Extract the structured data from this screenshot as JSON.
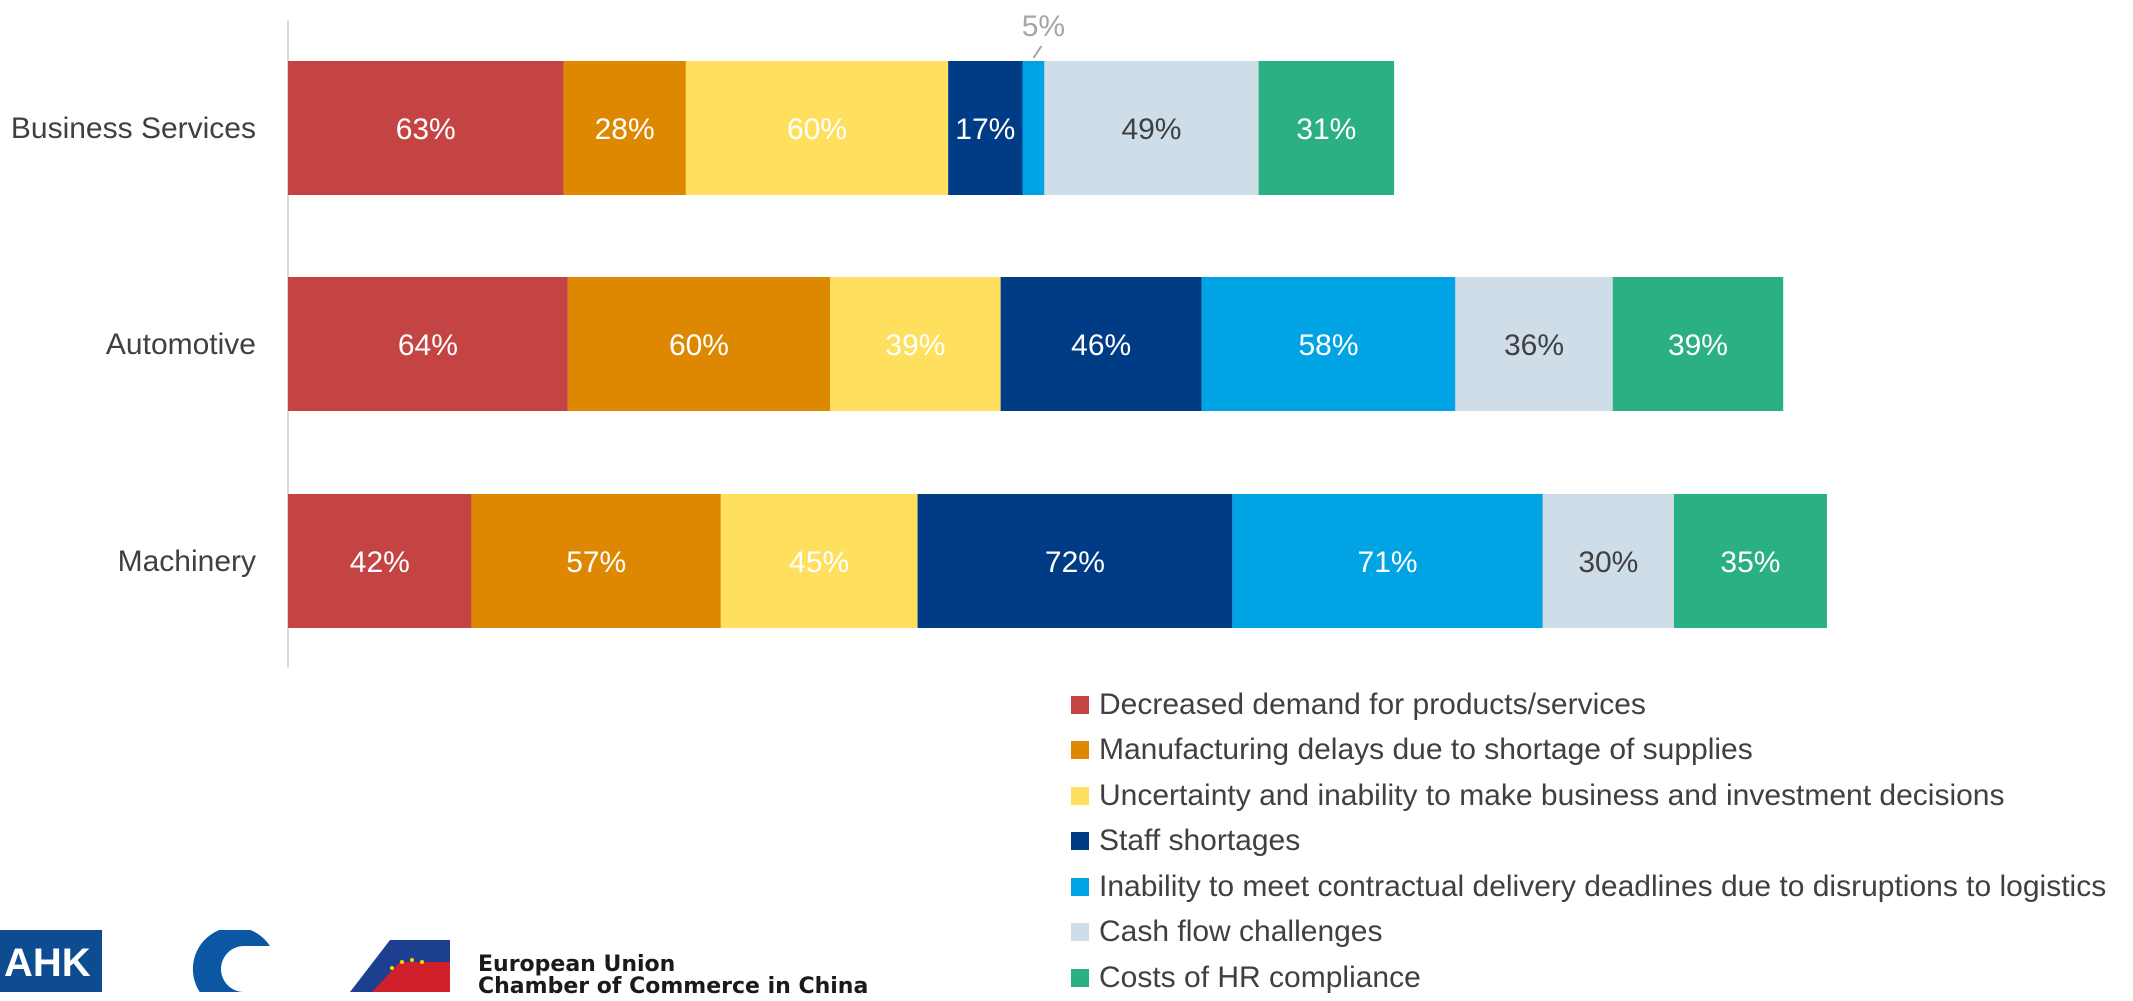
{
  "chart_data": {
    "type": "bar",
    "orientation": "horizontal",
    "stacked": true,
    "categories": [
      "Business Services",
      "Automotive",
      "Machinery"
    ],
    "series": [
      {
        "name": "Decreased demand for products/services",
        "color": "#c44444",
        "values": [
          63,
          64,
          42
        ],
        "label_color": "#ffffff"
      },
      {
        "name": "Manufacturing delays due to shortage of supplies",
        "color": "#dd8800",
        "values": [
          28,
          60,
          57
        ],
        "label_color": "#ffffff"
      },
      {
        "name": "Uncertainty and inability to make business and investment decisions",
        "color": "#ffdf5e",
        "values": [
          60,
          39,
          45
        ],
        "label_color": "#ffffff"
      },
      {
        "name": "Staff shortages",
        "color": "#003b85",
        "values": [
          17,
          46,
          72
        ],
        "label_color": "#ffffff"
      },
      {
        "name": "Inability to meet contractual delivery deadlines due to disruptions to logistics",
        "color": "#00a4e4",
        "values": [
          5,
          58,
          71
        ],
        "label_color": "#ffffff"
      },
      {
        "name": "Cash flow challenges",
        "color": "#cfdde9",
        "values": [
          49,
          36,
          30
        ],
        "label_color": "#404040"
      },
      {
        "name": "Costs of HR compliance",
        "color": "#2bb084",
        "values": [
          31,
          39,
          35
        ],
        "label_color": "#ffffff"
      }
    ],
    "value_suffix": "%",
    "grid": false,
    "legend_position": "bottom-right"
  },
  "logos": {
    "ahk_text": "AHK",
    "eu_chamber_line1": "European Union",
    "eu_chamber_line2": "Chamber of Commerce in China"
  }
}
